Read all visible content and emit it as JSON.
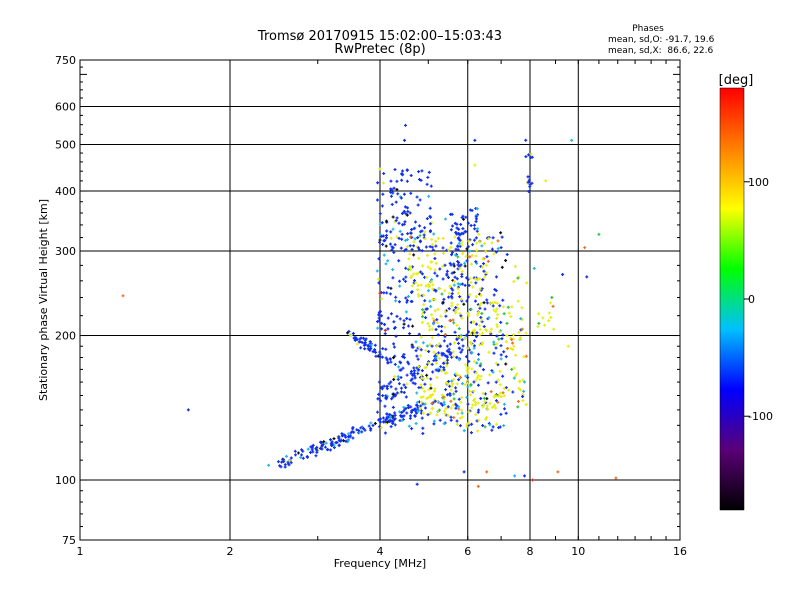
{
  "chart_data": {
    "type": "scatter",
    "title": "Tromsø 20170915 15:02:00–15:03:43",
    "subtitle": "RwPretec (8p)",
    "phase_box": {
      "heading": "Phases",
      "line1": "mean, sd,O: -91.7, 19.6",
      "line2": "mean, sd,X:  86.6, 22.6"
    },
    "xlabel": "Frequency [MHz]",
    "ylabel": "Stationary phase Virtual Height [km]",
    "x_scale": "log",
    "y_scale": "log",
    "xlim": [
      1,
      16
    ],
    "ylim": [
      75,
      750
    ],
    "x_major_ticks": [
      1,
      2,
      4,
      6,
      8,
      10,
      16
    ],
    "x_tick_labels": [
      "1",
      "2",
      "4",
      "6",
      "8",
      "10",
      "16"
    ],
    "x_gridlines": [
      2,
      4,
      6,
      8,
      10
    ],
    "y_major_ticks": [
      75,
      100,
      200,
      300,
      400,
      500,
      600,
      750
    ],
    "y_tick_labels": [
      "75",
      "100",
      "200",
      "300",
      "400",
      "500",
      "600",
      "750"
    ],
    "y_gridlines": [
      100,
      200,
      300,
      400,
      500,
      600
    ],
    "grid": true,
    "colorbar": {
      "label": "[deg]",
      "range": [
        -180,
        180
      ],
      "ticks": [
        100,
        0,
        -100
      ],
      "tick_labels": [
        "100",
        "0",
        "-100"
      ],
      "colors": [
        "#000000",
        "#5a0078",
        "#0000ff",
        "#00c0ff",
        "#00ff00",
        "#ffff00",
        "#ff8000",
        "#ff0000"
      ]
    },
    "colors": {
      "o_mode": "#1030ee",
      "x_mode": "#e6ee10",
      "cyan": "#20b8e8",
      "green": "#30c040",
      "orange": "#f07020",
      "red": "#e02020",
      "black": "#101010"
    },
    "clusters": [
      {
        "desc": "lower E/F trace",
        "type": "line",
        "x0": 2.45,
        "y0": 107,
        "x1": 4.85,
        "y1": 142,
        "n": 180,
        "jx": 0.03,
        "jy": 0.025,
        "phase": -95
      },
      {
        "desc": "oblique 200 km band",
        "type": "line",
        "x0": 3.5,
        "y0": 200,
        "x1": 4.3,
        "y1": 175,
        "n": 60,
        "jx": 0.02,
        "jy": 0.03,
        "phase": -95
      },
      {
        "desc": "low F trace",
        "type": "line",
        "x0": 4.0,
        "y0": 150,
        "x1": 6.0,
        "y1": 195,
        "n": 90,
        "jx": 0.03,
        "jy": 0.04,
        "phase": -95
      },
      {
        "desc": "main blue blob",
        "type": "box",
        "xa": 3.95,
        "xb": 7.2,
        "ya": 125,
        "yb": 330,
        "n": 430,
        "phase": -95
      },
      {
        "desc": "upper blue column",
        "type": "box",
        "xa": 3.95,
        "xb": 5.1,
        "ya": 300,
        "yb": 445,
        "n": 110,
        "phase": -95
      },
      {
        "desc": "upper right column",
        "type": "box",
        "xa": 5.4,
        "xb": 6.3,
        "ya": 240,
        "yb": 370,
        "n": 80,
        "phase": -95
      },
      {
        "desc": "x-mode main",
        "type": "box",
        "xa": 4.8,
        "xb": 7.9,
        "ya": 140,
        "yb": 230,
        "n": 240,
        "phase": 90
      },
      {
        "desc": "x-mode upper",
        "type": "box",
        "xa": 4.5,
        "xb": 6.8,
        "ya": 230,
        "yb": 330,
        "n": 110,
        "phase": 90
      },
      {
        "desc": "x-mode lower",
        "type": "box",
        "xa": 5.0,
        "xb": 7.0,
        "ya": 128,
        "yb": 150,
        "n": 50,
        "phase": 90
      },
      {
        "desc": "x-mode scattered",
        "type": "box",
        "xa": 6.3,
        "xb": 9.0,
        "ya": 190,
        "yb": 280,
        "n": 30,
        "phase": 90
      },
      {
        "desc": "8 MHz spread",
        "type": "box",
        "xa": 7.8,
        "xb": 8.1,
        "ya": 390,
        "yb": 540,
        "n": 14,
        "phase": -95
      }
    ],
    "points": [
      {
        "x": 1.22,
        "y": 242,
        "phase": 150
      },
      {
        "x": 1.65,
        "y": 140,
        "phase": -100
      },
      {
        "x": 4.5,
        "y": 548,
        "phase": -100
      },
      {
        "x": 4.48,
        "y": 510,
        "phase": -100
      },
      {
        "x": 6.2,
        "y": 453,
        "phase": 100
      },
      {
        "x": 6.2,
        "y": 510,
        "phase": -70
      },
      {
        "x": 8.6,
        "y": 420,
        "phase": 60
      },
      {
        "x": 9.7,
        "y": 510,
        "phase": 95
      },
      {
        "x": 11.0,
        "y": 325,
        "phase": 95
      },
      {
        "x": 10.3,
        "y": 305,
        "phase": 150
      },
      {
        "x": 10.4,
        "y": 265,
        "phase": -110
      },
      {
        "x": 9.3,
        "y": 268,
        "phase": -110
      },
      {
        "x": 8.85,
        "y": 240,
        "phase": 40
      },
      {
        "x": 8.9,
        "y": 230,
        "phase": 60
      },
      {
        "x": 9.55,
        "y": 190,
        "phase": 80
      },
      {
        "x": 7.1,
        "y": 222,
        "phase": -20
      },
      {
        "x": 7.35,
        "y": 170,
        "phase": -20
      },
      {
        "x": 7.8,
        "y": 160,
        "phase": -20
      },
      {
        "x": 6.3,
        "y": 97,
        "phase": 150
      },
      {
        "x": 4.75,
        "y": 98,
        "phase": -110
      },
      {
        "x": 6.55,
        "y": 104,
        "phase": 150
      },
      {
        "x": 7.45,
        "y": 102,
        "phase": -100
      },
      {
        "x": 7.8,
        "y": 102,
        "phase": -100
      },
      {
        "x": 8.1,
        "y": 100,
        "phase": 150
      },
      {
        "x": 9.1,
        "y": 104,
        "phase": 150
      },
      {
        "x": 11.9,
        "y": 101,
        "phase": 150
      },
      {
        "x": 5.9,
        "y": 104,
        "phase": -110
      },
      {
        "x": 4.0,
        "y": 245,
        "phase": 160
      },
      {
        "x": 4.1,
        "y": 205,
        "phase": 160
      },
      {
        "x": 7.0,
        "y": 305,
        "phase": -100
      },
      {
        "x": 7.2,
        "y": 295,
        "phase": -100
      },
      {
        "x": 6.9,
        "y": 315,
        "phase": 170
      }
    ]
  }
}
